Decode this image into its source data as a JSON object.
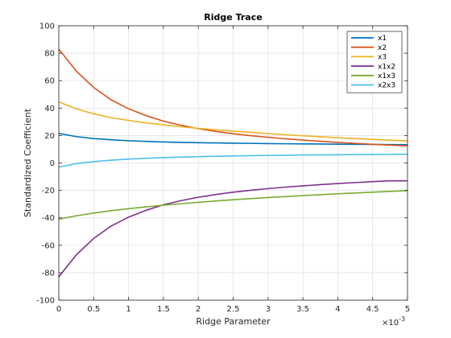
{
  "chart_data": {
    "type": "line",
    "title": "Ridge Trace",
    "xlabel": "Ridge Parameter",
    "ylabel": "Standardized Coefficient",
    "x_exponent_label": "×10",
    "x_exponent_power": "-3",
    "xlim": [
      0,
      5
    ],
    "ylim": [
      -100,
      100
    ],
    "xticks": [
      0,
      0.5,
      1,
      1.5,
      2,
      2.5,
      3,
      3.5,
      4,
      4.5,
      5
    ],
    "xtick_labels": [
      "0",
      "0.5",
      "1",
      "1.5",
      "2",
      "2.5",
      "3",
      "3.5",
      "4",
      "4.5",
      "5"
    ],
    "yticks": [
      -100,
      -80,
      -60,
      -40,
      -20,
      0,
      20,
      40,
      60,
      80,
      100
    ],
    "ytick_labels": [
      "-100",
      "-80",
      "-60",
      "-40",
      "-20",
      "0",
      "20",
      "40",
      "60",
      "80",
      "100"
    ],
    "grid": true,
    "legend_position": "top-right",
    "x": [
      0,
      0.25,
      0.5,
      0.75,
      1,
      1.25,
      1.5,
      1.75,
      2,
      2.25,
      2.5,
      2.75,
      3,
      3.25,
      3.5,
      3.75,
      4,
      4.25,
      4.5,
      4.75,
      5
    ],
    "series": [
      {
        "name": "x1",
        "color": "#0072BD",
        "values": [
          21.5,
          19.2,
          17.8,
          16.9,
          16.2,
          15.7,
          15.3,
          15.0,
          14.8,
          14.6,
          14.4,
          14.3,
          14.1,
          14.0,
          13.9,
          13.8,
          13.7,
          13.6,
          13.5,
          13.4,
          13.3
        ]
      },
      {
        "name": "x2",
        "color": "#D95319",
        "values": [
          83.0,
          67.0,
          55.0,
          46.0,
          39.5,
          34.5,
          30.5,
          27.5,
          25.0,
          23.0,
          21.3,
          19.9,
          18.7,
          17.6,
          16.7,
          15.8,
          15.0,
          14.3,
          13.6,
          13.0,
          12.5
        ]
      },
      {
        "name": "x3",
        "color": "#EDB120",
        "values": [
          44.5,
          39.5,
          35.8,
          33.0,
          31.0,
          29.2,
          27.8,
          26.4,
          25.2,
          24.2,
          23.2,
          22.3,
          21.4,
          20.6,
          19.8,
          19.1,
          18.4,
          17.8,
          17.2,
          16.6,
          16.0
        ]
      },
      {
        "name": "x1x2",
        "color": "#7E2F8E",
        "values": [
          -83.0,
          -67.0,
          -55.0,
          -46.0,
          -39.5,
          -34.5,
          -30.5,
          -27.5,
          -25.0,
          -23.0,
          -21.3,
          -19.9,
          -18.7,
          -17.6,
          -16.7,
          -15.8,
          -15.0,
          -14.3,
          -13.6,
          -13.0,
          -13.0
        ]
      },
      {
        "name": "x1x3",
        "color": "#77AC30",
        "values": [
          -41.0,
          -38.5,
          -36.5,
          -34.8,
          -33.3,
          -32.0,
          -30.8,
          -29.7,
          -28.7,
          -27.7,
          -26.8,
          -26.0,
          -25.2,
          -24.5,
          -23.8,
          -23.1,
          -22.5,
          -21.9,
          -21.3,
          -20.7,
          -20.2
        ]
      },
      {
        "name": "x2x3",
        "color": "#4DBEEE",
        "values": [
          -3.0,
          -0.5,
          1.0,
          2.0,
          2.8,
          3.4,
          3.9,
          4.3,
          4.6,
          4.9,
          5.1,
          5.3,
          5.5,
          5.6,
          5.8,
          5.9,
          6.0,
          6.1,
          6.2,
          6.3,
          6.4
        ]
      }
    ]
  }
}
